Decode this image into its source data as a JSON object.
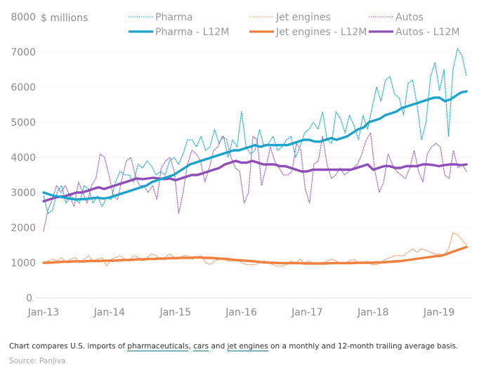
{
  "chart_data": {
    "type": "line",
    "title": "",
    "unit_label": "$ millions",
    "xlabel": "",
    "ylabel": "$ millions",
    "ylim": [
      0,
      8000
    ],
    "yticks": [
      0,
      1000,
      2000,
      3000,
      4000,
      5000,
      6000,
      7000,
      8000
    ],
    "grid": true,
    "legend_position": "top",
    "x_start": "Jan-13",
    "x_end": "Jun-19",
    "xtick_labels": [
      "Jan-13",
      "Jan-14",
      "Jan-15",
      "Jan-16",
      "Jan-17",
      "Jan-18",
      "Jan-19"
    ],
    "series": [
      {
        "name": "Pharma",
        "style": "dotted",
        "color": "#2bb0d0",
        "values": [
          2900,
          2400,
          2500,
          3000,
          3200,
          2700,
          2900,
          2800,
          2700,
          3200,
          3100,
          2700,
          2900,
          2600,
          2850,
          2800,
          3300,
          3600,
          3500,
          3500,
          3300,
          3800,
          3700,
          3900,
          3750,
          3500,
          3600,
          3500,
          3900,
          4000,
          3800,
          4100,
          4500,
          4500,
          4300,
          4600,
          4200,
          4300,
          4800,
          4400,
          4600,
          4000,
          4500,
          4300,
          5300,
          4300,
          4100,
          4200,
          4800,
          4300,
          4400,
          4600,
          4200,
          4300,
          4500,
          4600,
          4000,
          4300,
          4700,
          4800,
          5000,
          4800,
          5300,
          4500,
          4400,
          5300,
          5100,
          4700,
          5200,
          4900,
          4500,
          5200,
          4800,
          5400,
          6000,
          5600,
          6200,
          6300,
          5800,
          5700,
          5200,
          6100,
          6200,
          5500,
          4500,
          5000,
          6300,
          6700,
          5900,
          6500,
          4600,
          6500,
          7100,
          6900,
          6300
        ]
      },
      {
        "name": "Jet engines",
        "style": "dotted",
        "color": "#f0a070",
        "values": [
          1000,
          1050,
          1100,
          1050,
          1150,
          1000,
          1100,
          1150,
          1000,
          1100,
          1200,
          1050,
          1100,
          1150,
          900,
          1100,
          1150,
          1200,
          1100,
          1050,
          1200,
          1150,
          1050,
          1150,
          1250,
          1200,
          1100,
          1150,
          1250,
          1150,
          1100,
          1200,
          1200,
          1100,
          1150,
          1200,
          1000,
          950,
          1050,
          1100,
          1100,
          1050,
          1050,
          1100,
          1000,
          950,
          950,
          950,
          1000,
          1050,
          1000,
          950,
          900,
          900,
          950,
          1050,
          1000,
          1100,
          1000,
          1050,
          1000,
          950,
          1000,
          1050,
          1100,
          1050,
          1000,
          1000,
          1050,
          1100,
          1000,
          1000,
          1050,
          950,
          950,
          1000,
          1100,
          1150,
          1200,
          1200,
          1200,
          1300,
          1400,
          1300,
          1400,
          1350,
          1300,
          1250,
          1250,
          1200,
          1400,
          1850,
          1800,
          1650,
          1500
        ]
      },
      {
        "name": "Autos",
        "style": "dotted",
        "color": "#a070c8",
        "values": [
          1900,
          2500,
          2800,
          3200,
          3000,
          3200,
          2900,
          2600,
          3300,
          3000,
          2700,
          3200,
          3400,
          4100,
          4000,
          3500,
          2900,
          2800,
          3400,
          3900,
          4000,
          3500,
          3200,
          3200,
          3000,
          3200,
          2800,
          3700,
          3900,
          4000,
          3600,
          2400,
          3000,
          3800,
          4200,
          4100,
          3900,
          3300,
          3700,
          4200,
          4300,
          4600,
          4500,
          4000,
          3700,
          3600,
          2700,
          3000,
          4600,
          4500,
          3200,
          3700,
          4300,
          3900,
          3700,
          3500,
          3500,
          3600,
          4400,
          4200,
          3100,
          2700,
          3800,
          3900,
          4600,
          3800,
          3400,
          3500,
          3700,
          3500,
          3600,
          3700,
          3800,
          4100,
          4500,
          4700,
          3600,
          3000,
          3300,
          4100,
          3800,
          3600,
          3500,
          3400,
          3700,
          4200,
          3600,
          3300,
          4100,
          4300,
          4400,
          4300,
          3500,
          3400,
          4200,
          3700,
          3800,
          3600
        ]
      },
      {
        "name": "Pharma - L12M",
        "style": "solid",
        "color": "#1ba3cc",
        "values": [
          3000,
          2950,
          2900,
          2880,
          2850,
          2820,
          2800,
          2810,
          2820,
          2840,
          2850,
          2830,
          2850,
          2900,
          2950,
          3000,
          3050,
          3100,
          3150,
          3200,
          3300,
          3350,
          3400,
          3450,
          3500,
          3600,
          3700,
          3800,
          3850,
          3900,
          3950,
          4000,
          4050,
          4100,
          4150,
          4200,
          4200,
          4250,
          4300,
          4350,
          4300,
          4350,
          4350,
          4350,
          4350,
          4350,
          4400,
          4450,
          4500,
          4500,
          4450,
          4450,
          4500,
          4550,
          4500,
          4550,
          4600,
          4700,
          4800,
          4850,
          5000,
          5050,
          5100,
          5200,
          5250,
          5300,
          5400,
          5450,
          5500,
          5550,
          5600,
          5650,
          5700,
          5700,
          5600,
          5650,
          5750,
          5850,
          5880
        ]
      },
      {
        "name": "Jet engines - L12M",
        "style": "solid",
        "color": "#f08040",
        "values": [
          1000,
          1000,
          1010,
          1020,
          1030,
          1030,
          1040,
          1040,
          1040,
          1050,
          1050,
          1050,
          1060,
          1060,
          1060,
          1070,
          1080,
          1080,
          1090,
          1100,
          1100,
          1110,
          1110,
          1120,
          1120,
          1130,
          1130,
          1140,
          1140,
          1140,
          1150,
          1150,
          1140,
          1140,
          1130,
          1120,
          1110,
          1100,
          1080,
          1070,
          1060,
          1050,
          1040,
          1020,
          1010,
          1000,
          1000,
          990,
          990,
          990,
          990,
          990,
          980,
          980,
          980,
          980,
          980,
          990,
          990,
          990,
          990,
          990,
          1000,
          1000,
          1000,
          1000,
          1010,
          1010,
          1020,
          1030,
          1040,
          1050,
          1070,
          1090,
          1110,
          1130,
          1150,
          1170,
          1190,
          1200,
          1250,
          1300,
          1350,
          1400,
          1450
        ]
      },
      {
        "name": "Autos - L12M",
        "style": "solid",
        "color": "#8e4db8",
        "values": [
          2750,
          2800,
          2850,
          2880,
          2900,
          2950,
          3000,
          3000,
          3050,
          3100,
          3150,
          3100,
          3150,
          3200,
          3250,
          3300,
          3350,
          3400,
          3380,
          3400,
          3420,
          3400,
          3380,
          3400,
          3350,
          3400,
          3450,
          3500,
          3500,
          3550,
          3600,
          3650,
          3700,
          3800,
          3850,
          3900,
          3850,
          3850,
          3900,
          3850,
          3800,
          3800,
          3800,
          3750,
          3750,
          3700,
          3650,
          3600,
          3600,
          3650,
          3650,
          3650,
          3650,
          3650,
          3650,
          3650,
          3650,
          3700,
          3750,
          3800,
          3650,
          3700,
          3750,
          3750,
          3700,
          3700,
          3750,
          3750,
          3750,
          3800,
          3800,
          3780,
          3750,
          3780,
          3800,
          3800,
          3780,
          3800
        ]
      }
    ]
  },
  "legend": [
    {
      "label": "Pharma",
      "style": "dotted",
      "color": "#2bb0d0"
    },
    {
      "label": "Jet engines",
      "style": "dotted",
      "color": "#f0a070"
    },
    {
      "label": "Autos",
      "style": "dotted",
      "color": "#a070c8"
    },
    {
      "label": "Pharma - L12M",
      "style": "solid",
      "color": "#1ba3cc"
    },
    {
      "label": "Jet engines - L12M",
      "style": "solid",
      "color": "#f08040"
    },
    {
      "label": "Autos - L12M",
      "style": "solid",
      "color": "#8e4db8"
    }
  ],
  "caption": {
    "prefix": "Chart compares U.S. imports of ",
    "link1": "pharmaceuticals",
    "sep1": ", ",
    "link2": "cars",
    "sep2": " and ",
    "link3": "jet engines",
    "suffix": " on a monthly and 12-month trailing average basis."
  },
  "source": "Source: Panjiva"
}
